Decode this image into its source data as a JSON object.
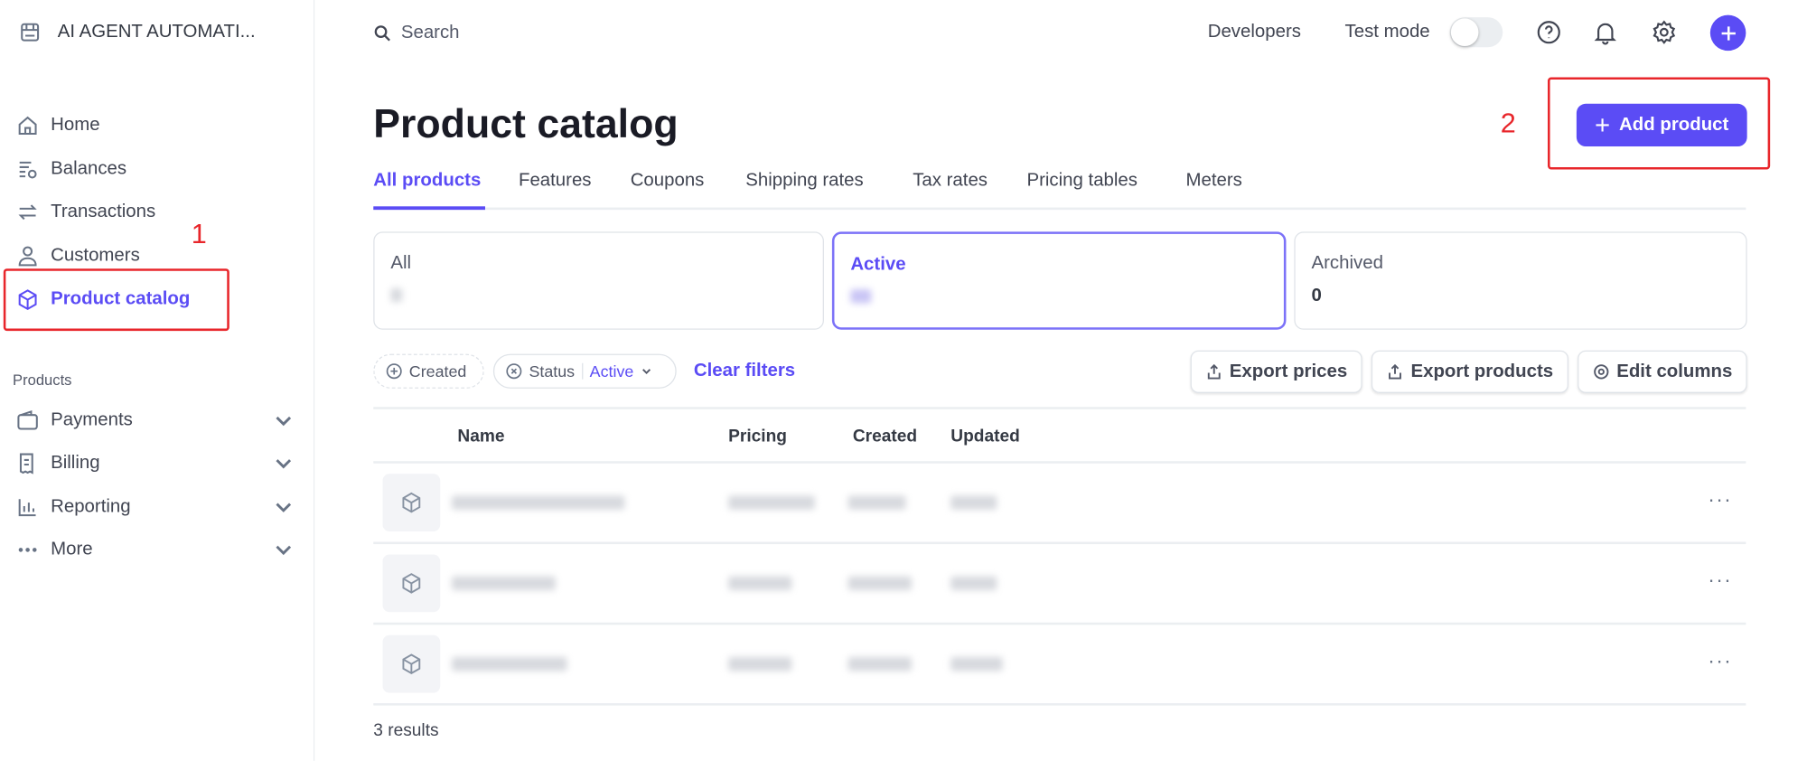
{
  "account": {
    "name": "AI AGENT AUTOMATI...",
    "icon": "store-icon"
  },
  "sidebar": {
    "items": [
      {
        "label": "Home",
        "icon": "home-icon"
      },
      {
        "label": "Balances",
        "icon": "balances-icon"
      },
      {
        "label": "Transactions",
        "icon": "transactions-icon"
      },
      {
        "label": "Customers",
        "icon": "customer-icon"
      },
      {
        "label": "Product catalog",
        "icon": "box-icon",
        "active": true
      }
    ],
    "section_label": "Products",
    "product_items": [
      {
        "label": "Payments",
        "icon": "wallet-icon"
      },
      {
        "label": "Billing",
        "icon": "billing-icon"
      },
      {
        "label": "Reporting",
        "icon": "chart-icon"
      },
      {
        "label": "More",
        "icon": "more-icon"
      }
    ]
  },
  "topbar": {
    "search_placeholder": "Search",
    "developers": "Developers",
    "test_mode": "Test mode",
    "test_mode_on": false
  },
  "annotations": {
    "step1": "1",
    "step2": "2",
    "color": "#e8262b"
  },
  "page": {
    "title": "Product catalog",
    "add_button": "Add product",
    "accent": "#5b4cf5"
  },
  "tabs": [
    "All products",
    "Features",
    "Coupons",
    "Shipping rates",
    "Tax rates",
    "Pricing tables",
    "Meters"
  ],
  "cards": [
    {
      "label": "All"
    },
    {
      "label": "Active"
    },
    {
      "label": "Archived",
      "value": "0"
    }
  ],
  "filters": {
    "created": "Created",
    "status": "Status",
    "status_value": "Active",
    "clear": "Clear filters"
  },
  "actions": {
    "export_prices": "Export prices",
    "export_products": "Export products",
    "edit_columns": "Edit columns"
  },
  "table": {
    "columns": [
      "Name",
      "Pricing",
      "Created",
      "Updated"
    ],
    "row_count": 3
  },
  "footer": {
    "results": "3 results"
  }
}
